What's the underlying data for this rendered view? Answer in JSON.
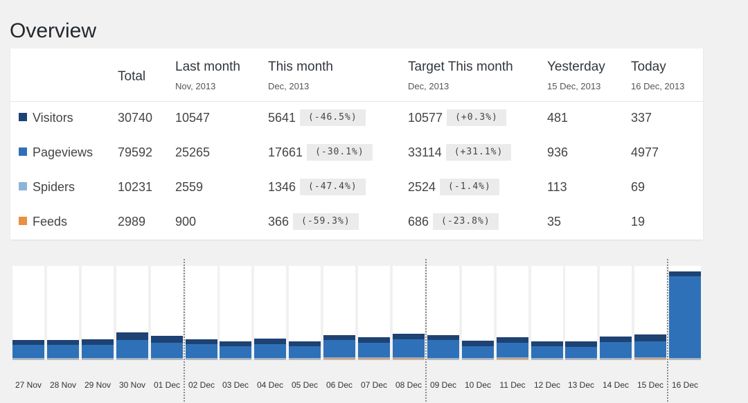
{
  "page_title": "Overview",
  "table": {
    "columns": [
      {
        "label": "Total",
        "sub": ""
      },
      {
        "label": "Last month",
        "sub": "Nov, 2013"
      },
      {
        "label": "This month",
        "sub": "Dec, 2013"
      },
      {
        "label": "Target This month",
        "sub": "Dec, 2013"
      },
      {
        "label": "Yesterday",
        "sub": "15 Dec, 2013"
      },
      {
        "label": "Today",
        "sub": "16 Dec, 2013"
      }
    ],
    "rows": [
      {
        "name": "Visitors",
        "color": "#1e4273",
        "total": "30740",
        "last_month": "10547",
        "this_month": "5641",
        "this_month_pct": "(-46.5%)",
        "target": "10577",
        "target_pct": "(+0.3%)",
        "yesterday": "481",
        "today": "337"
      },
      {
        "name": "Pageviews",
        "color": "#2f71b8",
        "total": "79592",
        "last_month": "25265",
        "this_month": "17661",
        "this_month_pct": "(-30.1%)",
        "target": "33114",
        "target_pct": "(+31.1%)",
        "yesterday": "936",
        "today": "4977"
      },
      {
        "name": "Spiders",
        "color": "#8db3dc",
        "total": "10231",
        "last_month": "2559",
        "this_month": "1346",
        "this_month_pct": "(-47.4%)",
        "target": "2524",
        "target_pct": "(-1.4%)",
        "yesterday": "113",
        "today": "69"
      },
      {
        "name": "Feeds",
        "color": "#e99041",
        "total": "2989",
        "last_month": "900",
        "this_month": "366",
        "this_month_pct": "(-59.3%)",
        "target": "686",
        "target_pct": "(-23.8%)",
        "yesterday": "35",
        "today": "19"
      }
    ]
  },
  "chart_data": {
    "type": "bar",
    "stacked": true,
    "categories": [
      "27 Nov",
      "28 Nov",
      "29 Nov",
      "30 Nov",
      "01 Dec",
      "02 Dec",
      "03 Dec",
      "04 Dec",
      "05 Dec",
      "06 Dec",
      "07 Dec",
      "08 Dec",
      "09 Dec",
      "10 Dec",
      "11 Dec",
      "12 Dec",
      "13 Dec",
      "14 Dec",
      "15 Dec",
      "16 Dec"
    ],
    "series": [
      {
        "name": "Feeds",
        "color": "#e99041",
        "values": [
          0,
          0,
          0,
          0,
          0,
          0,
          0,
          0,
          0,
          10,
          10,
          10,
          0,
          0,
          10,
          0,
          0,
          0,
          10,
          0
        ]
      },
      {
        "name": "Spiders",
        "color": "#8db3dc",
        "values": [
          10,
          10,
          10,
          10,
          10,
          10,
          30,
          10,
          10,
          10,
          10,
          10,
          10,
          10,
          10,
          10,
          10,
          10,
          30,
          10
        ]
      },
      {
        "name": "Pageviews",
        "color": "#2f71b8",
        "values": [
          530,
          540,
          550,
          750,
          620,
          580,
          490,
          560,
          480,
          700,
          600,
          730,
          740,
          490,
          590,
          470,
          460,
          660,
          650,
          3350
        ]
      },
      {
        "name": "Visitors",
        "color": "#1e4273",
        "values": [
          200,
          200,
          220,
          310,
          270,
          200,
          190,
          230,
          210,
          200,
          220,
          220,
          210,
          220,
          230,
          200,
          220,
          230,
          270,
          190
        ]
      }
    ],
    "period_separators_after": [
      "01 Dec",
      "08 Dec",
      "15 Dec"
    ],
    "ylim": [
      0,
      3800
    ],
    "legend": "none",
    "grid": false
  }
}
